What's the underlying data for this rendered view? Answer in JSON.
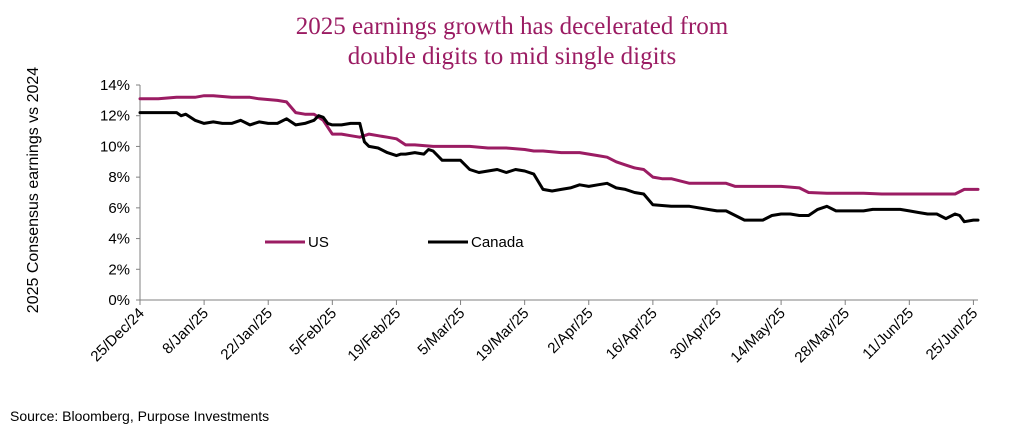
{
  "title_line1": "2025 earnings growth has decelerated from",
  "title_line2": "double digits to mid single digits",
  "source": "Source: Bloomberg, Purpose Investments",
  "colors": {
    "us": "#9b1c63",
    "canada": "#000000",
    "axis": "#808080",
    "title": "#9b1c63"
  },
  "chart_data": {
    "type": "line",
    "title": "2025 earnings growth has decelerated from double digits to mid single digits",
    "xlabel": "",
    "ylabel": "2025 Consensus earnings vs 2024",
    "ylim": [
      0,
      14
    ],
    "yticks": [
      0,
      2,
      4,
      6,
      8,
      10,
      12,
      14
    ],
    "ytick_labels": [
      "0%",
      "2%",
      "4%",
      "6%",
      "8%",
      "10%",
      "12%",
      "14%"
    ],
    "xlim": [
      0,
      183
    ],
    "xticks": [
      0,
      14,
      28,
      42,
      56,
      70,
      84,
      98,
      112,
      126,
      140,
      154,
      168,
      182
    ],
    "xtick_labels": [
      "25/Dec/24",
      "8/Jan/25",
      "22/Jan/25",
      "5/Feb/25",
      "19/Feb/25",
      "5/Mar/25",
      "19/Mar/25",
      "2/Apr/25",
      "16/Apr/25",
      "30/Apr/25",
      "14/May/25",
      "28/May/25",
      "11/Jun/25",
      "25/Jun/25"
    ],
    "legend": {
      "placement": "middle-left",
      "entries": [
        "US",
        "Canada"
      ]
    },
    "series": [
      {
        "name": "US",
        "x": [
          0,
          4,
          8,
          12,
          14,
          16,
          20,
          24,
          26,
          30,
          32,
          34,
          36,
          38,
          40,
          42,
          44,
          46,
          48,
          50,
          52,
          54,
          56,
          58,
          60,
          64,
          68,
          72,
          76,
          80,
          84,
          86,
          88,
          92,
          96,
          98,
          100,
          102,
          104,
          106,
          108,
          110,
          112,
          114,
          116,
          120,
          124,
          126,
          128,
          130,
          132,
          136,
          140,
          144,
          146,
          150,
          154,
          158,
          162,
          166,
          170,
          174,
          176,
          178,
          180,
          182,
          183
        ],
        "y": [
          13.1,
          13.1,
          13.2,
          13.2,
          13.3,
          13.3,
          13.2,
          13.2,
          13.1,
          13.0,
          12.9,
          12.2,
          12.1,
          12.1,
          11.7,
          10.8,
          10.8,
          10.7,
          10.6,
          10.8,
          10.7,
          10.6,
          10.5,
          10.1,
          10.1,
          10.0,
          10.0,
          10.0,
          9.9,
          9.9,
          9.8,
          9.7,
          9.7,
          9.6,
          9.6,
          9.5,
          9.4,
          9.3,
          9.0,
          8.8,
          8.6,
          8.5,
          8.0,
          7.9,
          7.9,
          7.6,
          7.6,
          7.6,
          7.6,
          7.4,
          7.4,
          7.4,
          7.4,
          7.3,
          7.0,
          6.95,
          6.95,
          6.95,
          6.9,
          6.9,
          6.9,
          6.9,
          6.9,
          6.9,
          7.2,
          7.2,
          7.2
        ]
      },
      {
        "name": "Canada",
        "x": [
          0,
          4,
          8,
          9,
          10,
          12,
          14,
          16,
          18,
          20,
          22,
          24,
          26,
          28,
          30,
          32,
          34,
          36,
          38,
          39,
          40,
          41,
          42,
          44,
          46,
          48,
          49,
          50,
          52,
          54,
          56,
          57,
          58,
          60,
          62,
          63,
          64,
          66,
          68,
          70,
          72,
          74,
          76,
          78,
          80,
          81,
          82,
          84,
          86,
          88,
          90,
          92,
          94,
          96,
          98,
          100,
          102,
          104,
          106,
          108,
          110,
          112,
          116,
          120,
          124,
          126,
          128,
          130,
          132,
          134,
          136,
          138,
          140,
          142,
          144,
          146,
          148,
          150,
          152,
          154,
          156,
          158,
          160,
          162,
          164,
          166,
          168,
          170,
          172,
          174,
          176,
          178,
          179,
          180,
          182,
          183
        ],
        "y": [
          12.2,
          12.2,
          12.2,
          12.0,
          12.1,
          11.7,
          11.5,
          11.6,
          11.5,
          11.5,
          11.7,
          11.4,
          11.6,
          11.5,
          11.5,
          11.8,
          11.4,
          11.5,
          11.7,
          12.0,
          11.9,
          11.5,
          11.4,
          11.4,
          11.5,
          11.5,
          10.3,
          10.0,
          9.9,
          9.6,
          9.4,
          9.5,
          9.5,
          9.6,
          9.5,
          9.8,
          9.7,
          9.1,
          9.1,
          9.1,
          8.5,
          8.3,
          8.4,
          8.5,
          8.3,
          8.4,
          8.5,
          8.4,
          8.2,
          7.2,
          7.1,
          7.2,
          7.3,
          7.5,
          7.4,
          7.5,
          7.6,
          7.3,
          7.2,
          7.0,
          6.9,
          6.2,
          6.1,
          6.1,
          5.9,
          5.8,
          5.8,
          5.5,
          5.2,
          5.2,
          5.2,
          5.5,
          5.6,
          5.6,
          5.5,
          5.5,
          5.9,
          6.1,
          5.8,
          5.8,
          5.8,
          5.8,
          5.9,
          5.9,
          5.9,
          5.9,
          5.8,
          5.7,
          5.6,
          5.6,
          5.3,
          5.6,
          5.5,
          5.1,
          5.2,
          5.2
        ]
      }
    ]
  }
}
